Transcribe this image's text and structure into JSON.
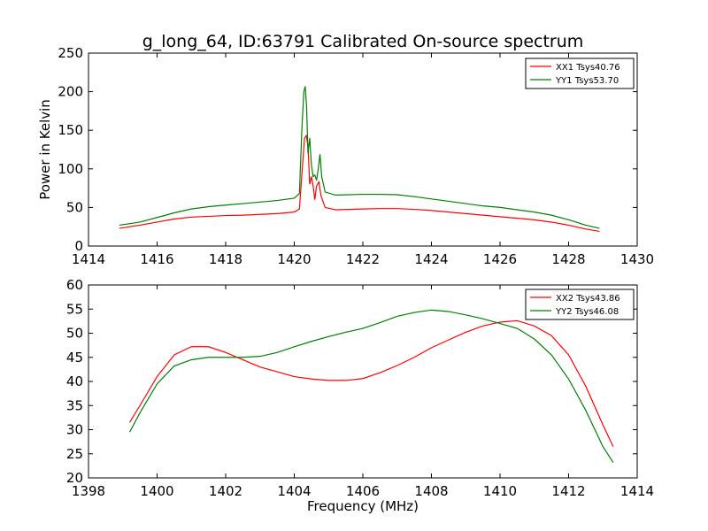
{
  "chart_data": [
    {
      "type": "line",
      "title": "g_long_64, ID:63791 Calibrated On-source spectrum",
      "xlabel": "",
      "ylabel": "Power in Kelvin",
      "xlim": [
        1414,
        1430
      ],
      "ylim": [
        0,
        250
      ],
      "xticks": [
        "1414",
        "1416",
        "1418",
        "1420",
        "1422",
        "1424",
        "1426",
        "1428",
        "1430"
      ],
      "yticks": [
        "0",
        "50",
        "100",
        "150",
        "200",
        "250"
      ],
      "grid": false,
      "legend_position": "top-right",
      "series": [
        {
          "name": "XX1 Tsys40.76",
          "color": "#ff0000",
          "points": [
            [
              1414.9,
              23
            ],
            [
              1415.5,
              27
            ],
            [
              1416,
              31
            ],
            [
              1416.5,
              35
            ],
            [
              1417,
              37.5
            ],
            [
              1417.5,
              38.5
            ],
            [
              1418,
              39.5
            ],
            [
              1418.5,
              40
            ],
            [
              1419,
              41
            ],
            [
              1419.5,
              42
            ],
            [
              1420,
              44
            ],
            [
              1420.15,
              48
            ],
            [
              1420.25,
              110
            ],
            [
              1420.3,
              140
            ],
            [
              1420.35,
              143
            ],
            [
              1420.4,
              130
            ],
            [
              1420.45,
              80
            ],
            [
              1420.5,
              90
            ],
            [
              1420.55,
              78
            ],
            [
              1420.6,
              60
            ],
            [
              1420.65,
              78
            ],
            [
              1420.72,
              83
            ],
            [
              1420.78,
              65
            ],
            [
              1420.9,
              50
            ],
            [
              1421.2,
              47
            ],
            [
              1422,
              48
            ],
            [
              1422.5,
              48.5
            ],
            [
              1423,
              48.5
            ],
            [
              1423.5,
              47.5
            ],
            [
              1424,
              46
            ],
            [
              1424.5,
              44
            ],
            [
              1425,
              42
            ],
            [
              1425.5,
              40
            ],
            [
              1426,
              38
            ],
            [
              1426.5,
              36
            ],
            [
              1427,
              34
            ],
            [
              1427.5,
              31
            ],
            [
              1428,
              27
            ],
            [
              1428.5,
              22
            ],
            [
              1428.9,
              19
            ]
          ]
        },
        {
          "name": "YY1 Tsys53.70",
          "color": "#008000",
          "points": [
            [
              1414.9,
              27
            ],
            [
              1415.5,
              31
            ],
            [
              1416,
              37
            ],
            [
              1416.5,
              43
            ],
            [
              1417,
              48
            ],
            [
              1417.5,
              51
            ],
            [
              1418,
              53
            ],
            [
              1418.5,
              55
            ],
            [
              1419,
              57
            ],
            [
              1419.5,
              59
            ],
            [
              1420,
              62
            ],
            [
              1420.15,
              68
            ],
            [
              1420.22,
              150
            ],
            [
              1420.28,
              200
            ],
            [
              1420.32,
              207
            ],
            [
              1420.36,
              180
            ],
            [
              1420.4,
              120
            ],
            [
              1420.45,
              140
            ],
            [
              1420.5,
              105
            ],
            [
              1420.55,
              90
            ],
            [
              1420.6,
              92
            ],
            [
              1420.65,
              85
            ],
            [
              1420.7,
              100
            ],
            [
              1420.75,
              119
            ],
            [
              1420.8,
              90
            ],
            [
              1420.9,
              70
            ],
            [
              1421.2,
              66
            ],
            [
              1422,
              67
            ],
            [
              1422.5,
              67
            ],
            [
              1423,
              66.5
            ],
            [
              1423.5,
              64
            ],
            [
              1424,
              61
            ],
            [
              1424.5,
              58
            ],
            [
              1425,
              55
            ],
            [
              1425.5,
              52
            ],
            [
              1426,
              50
            ],
            [
              1426.5,
              47
            ],
            [
              1427,
              44
            ],
            [
              1427.5,
              40
            ],
            [
              1428,
              34
            ],
            [
              1428.5,
              27
            ],
            [
              1428.9,
              23
            ]
          ]
        }
      ]
    },
    {
      "type": "line",
      "title": "",
      "xlabel": "Frequency (MHz)",
      "ylabel": "",
      "xlim": [
        1398,
        1414
      ],
      "ylim": [
        20,
        60
      ],
      "xticks": [
        "1398",
        "1400",
        "1402",
        "1404",
        "1406",
        "1408",
        "1410",
        "1412",
        "1414"
      ],
      "yticks": [
        "20",
        "25",
        "30",
        "35",
        "40",
        "45",
        "50",
        "55",
        "60"
      ],
      "grid": false,
      "legend_position": "top-right",
      "series": [
        {
          "name": "XX2 Tsys43.86",
          "color": "#ff0000",
          "points": [
            [
              1399.2,
              31.5
            ],
            [
              1399.5,
              35
            ],
            [
              1400,
              41
            ],
            [
              1400.5,
              45.5
            ],
            [
              1401,
              47.2
            ],
            [
              1401.5,
              47.2
            ],
            [
              1402,
              46
            ],
            [
              1402.5,
              44.5
            ],
            [
              1403,
              43
            ],
            [
              1403.5,
              42
            ],
            [
              1404,
              41
            ],
            [
              1404.5,
              40.5
            ],
            [
              1405,
              40.2
            ],
            [
              1405.5,
              40.2
            ],
            [
              1406,
              40.6
            ],
            [
              1406.5,
              41.8
            ],
            [
              1407,
              43.3
            ],
            [
              1407.5,
              45
            ],
            [
              1408,
              47
            ],
            [
              1408.5,
              48.6
            ],
            [
              1409,
              50.2
            ],
            [
              1409.5,
              51.5
            ],
            [
              1410,
              52.3
            ],
            [
              1410.5,
              52.6
            ],
            [
              1411,
              51.5
            ],
            [
              1411.5,
              49.5
            ],
            [
              1412,
              45.5
            ],
            [
              1412.5,
              39
            ],
            [
              1413,
              31
            ],
            [
              1413.3,
              26.5
            ]
          ]
        },
        {
          "name": "YY2 Tsys46.08",
          "color": "#008000",
          "points": [
            [
              1399.2,
              29.5
            ],
            [
              1399.5,
              33.5
            ],
            [
              1400,
              39.5
            ],
            [
              1400.5,
              43.2
            ],
            [
              1401,
              44.5
            ],
            [
              1401.5,
              45
            ],
            [
              1402,
              45
            ],
            [
              1402.5,
              45
            ],
            [
              1403,
              45.2
            ],
            [
              1403.5,
              46
            ],
            [
              1404,
              47.2
            ],
            [
              1404.5,
              48.3
            ],
            [
              1405,
              49.3
            ],
            [
              1405.5,
              50.2
            ],
            [
              1406,
              51
            ],
            [
              1406.5,
              52.2
            ],
            [
              1407,
              53.5
            ],
            [
              1407.5,
              54.3
            ],
            [
              1408,
              54.8
            ],
            [
              1408.5,
              54.5
            ],
            [
              1409,
              53.8
            ],
            [
              1409.5,
              53
            ],
            [
              1410,
              52
            ],
            [
              1410.5,
              51
            ],
            [
              1411,
              48.8
            ],
            [
              1411.5,
              45.5
            ],
            [
              1412,
              40.5
            ],
            [
              1412.5,
              34
            ],
            [
              1413,
              26.5
            ],
            [
              1413.3,
              23.2
            ]
          ]
        }
      ]
    }
  ]
}
